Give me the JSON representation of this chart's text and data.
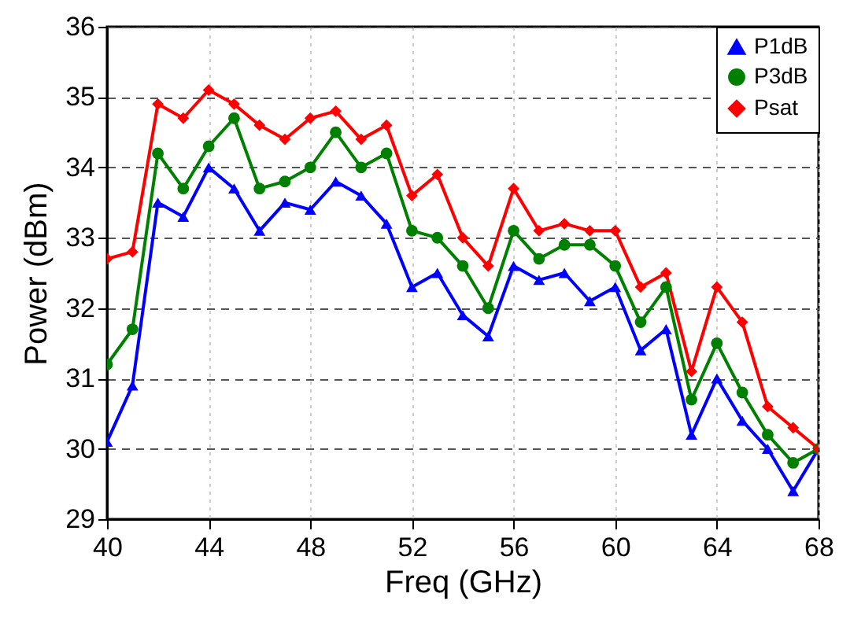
{
  "chart_data": {
    "type": "line",
    "xlabel": "Freq (GHz)",
    "ylabel": "Power (dBm)",
    "x": [
      40,
      41,
      42,
      43,
      44,
      45,
      46,
      47,
      48,
      49,
      50,
      51,
      52,
      53,
      54,
      55,
      56,
      57,
      58,
      59,
      60,
      61,
      62,
      63,
      64,
      65,
      66,
      67,
      68
    ],
    "series": [
      {
        "name": "P1dB",
        "color": "#0000ff",
        "marker": "triangle",
        "values": [
          30.1,
          30.9,
          33.5,
          33.3,
          34.0,
          33.7,
          33.1,
          33.5,
          33.4,
          33.8,
          33.6,
          33.2,
          32.3,
          32.5,
          31.9,
          31.6,
          32.6,
          32.4,
          32.5,
          32.1,
          32.3,
          31.4,
          31.7,
          30.2,
          31.0,
          30.4,
          30.0,
          29.4,
          30.0
        ]
      },
      {
        "name": "P3dB",
        "color": "#008000",
        "marker": "circle",
        "values": [
          31.2,
          31.7,
          34.2,
          33.7,
          34.3,
          34.7,
          33.7,
          33.8,
          34.0,
          34.5,
          34.0,
          34.2,
          33.1,
          33.0,
          32.6,
          32.0,
          33.1,
          32.7,
          32.9,
          32.9,
          32.6,
          31.8,
          32.3,
          30.7,
          31.5,
          30.8,
          30.2,
          29.8,
          30.0
        ]
      },
      {
        "name": "Psat",
        "color": "#ff0000",
        "marker": "diamond",
        "values": [
          32.7,
          32.8,
          34.9,
          34.7,
          35.1,
          34.9,
          34.6,
          34.4,
          34.7,
          34.8,
          34.4,
          34.6,
          33.6,
          33.9,
          33.0,
          32.6,
          33.7,
          33.1,
          33.2,
          33.1,
          33.1,
          32.3,
          32.5,
          31.1,
          32.3,
          31.8,
          30.6,
          30.3,
          30.0
        ]
      }
    ],
    "xlim": [
      40,
      68
    ],
    "xticks": [
      40,
      44,
      48,
      52,
      56,
      60,
      64,
      68
    ],
    "ylim": [
      29,
      36
    ],
    "yticks": [
      29,
      30,
      31,
      32,
      33,
      34,
      35,
      36
    ],
    "grid": true,
    "legend": "top right",
    "line_style": "solid"
  }
}
